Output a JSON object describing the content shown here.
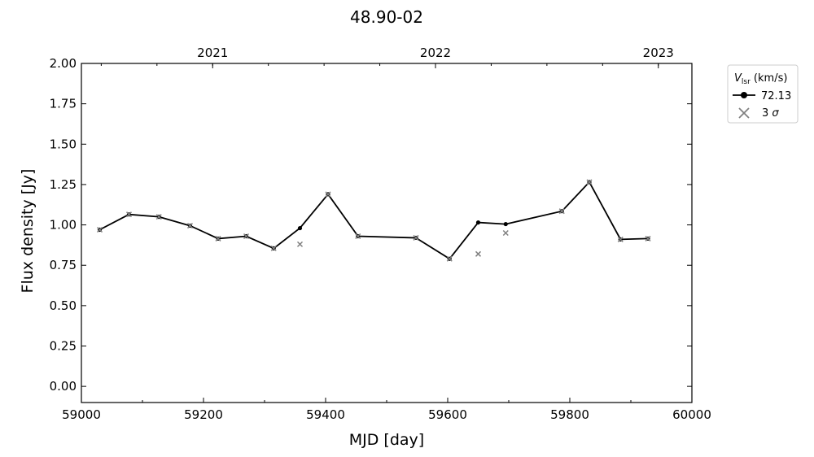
{
  "chart_data": {
    "type": "line",
    "title": "48.90-02",
    "xlabel": "MJD [day]",
    "ylabel": "Flux density [Jy]",
    "xlim": [
      59000,
      60000
    ],
    "ylim": [
      -0.1,
      2.0
    ],
    "xticks": [
      59000,
      59200,
      59400,
      59600,
      59800,
      60000
    ],
    "yticks": [
      0.0,
      0.25,
      0.5,
      0.75,
      1.0,
      1.25,
      1.5,
      1.75,
      2.0
    ],
    "top_axis": {
      "labels": [
        {
          "text": "2021",
          "mjd": 59215
        },
        {
          "text": "2022",
          "mjd": 59580
        },
        {
          "text": "2023",
          "mjd": 59945
        }
      ]
    },
    "legend": {
      "position": "outside-top-right",
      "title": "V_lsr (km/s)",
      "entries": [
        "72.13",
        "3 σ"
      ]
    },
    "series": [
      {
        "name": "72.13",
        "color": "#000000",
        "x": [
          59030,
          59078,
          59127,
          59178,
          59224,
          59270,
          59315,
          59358,
          59404,
          59453,
          59548,
          59603,
          59650,
          59695,
          59787,
          59832,
          59883,
          59928
        ],
        "y": [
          0.97,
          1.065,
          1.05,
          0.995,
          0.915,
          0.93,
          0.855,
          0.98,
          1.19,
          0.93,
          0.92,
          0.79,
          1.015,
          1.005,
          1.085,
          1.265,
          0.91,
          0.915
        ]
      },
      {
        "name": "3 σ",
        "color": "#808080",
        "x": [
          59030,
          59078,
          59127,
          59178,
          59224,
          59270,
          59315,
          59358,
          59404,
          59453,
          59548,
          59603,
          59650,
          59695,
          59787,
          59832,
          59883,
          59928
        ],
        "y": [
          0.97,
          1.065,
          1.05,
          0.995,
          0.915,
          0.93,
          0.855,
          0.88,
          1.19,
          0.93,
          0.92,
          0.79,
          0.82,
          0.95,
          1.085,
          1.265,
          0.91,
          0.915
        ]
      }
    ]
  }
}
